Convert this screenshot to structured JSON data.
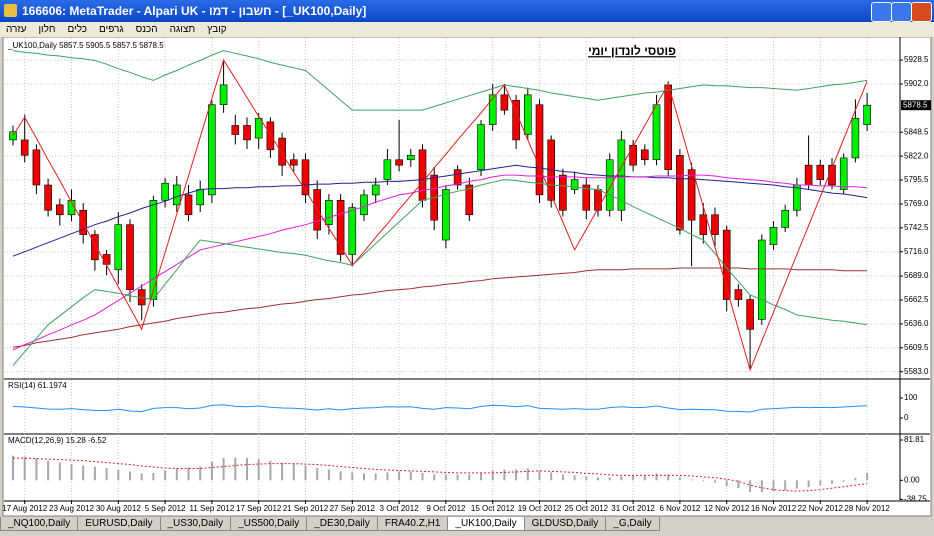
{
  "window": {
    "title": "166606: MetaTrader - Alpari UK - חשבון - דמו - [_UK100,Daily]",
    "menu": [
      "קובץ",
      "תצוגה",
      "הכנס",
      "גרפים",
      "כלים",
      "חלון",
      "עזרה"
    ],
    "tabs": [
      "_NQ100,Daily",
      "EURUSD,Daily",
      "_US30,Daily",
      "_US500,Daily",
      "_DE30,Daily",
      "FRA40.Z,H1",
      "_UK100,Daily",
      "GLDUSD,Daily",
      "_G,Daily"
    ],
    "active_tab": 6
  },
  "chart_data": [
    {
      "type": "candlestick",
      "header": "_UK100,Daily 5857.5 5905.5 5857.5 5878.5",
      "title": "פוטסי לונדון יומי",
      "x": [
        null,
        "17 Aug 2012",
        null,
        null,
        null,
        "23 Aug 2012",
        null,
        null,
        null,
        "30 Aug 2012",
        null,
        null,
        null,
        "5 Sep 2012",
        null,
        null,
        null,
        "11 Sep 2012",
        null,
        null,
        null,
        "17 Sep 2012",
        null,
        null,
        null,
        "21 Sep 2012",
        null,
        null,
        null,
        "27 Sep 2012",
        null,
        null,
        null,
        "3 Oct 2012",
        null,
        null,
        null,
        "9 Oct 2012",
        null,
        null,
        null,
        "15 Oct 2012",
        null,
        null,
        null,
        "19 Oct 2012",
        null,
        null,
        null,
        "25 Oct 2012",
        null,
        null,
        null,
        "31 Oct 2012",
        null,
        null,
        null,
        "6 Nov 2012",
        null,
        null,
        null,
        "12 Nov 2012",
        null,
        null,
        null,
        "16 Nov 2012",
        null,
        null,
        null,
        "22 Nov 2012",
        null,
        null,
        null,
        "28 Nov 2012"
      ],
      "open": [
        5840,
        5840,
        5829,
        5790,
        5768,
        5757,
        5762,
        5735,
        5713,
        5696,
        5746,
        5674,
        5663,
        5773,
        5768,
        5779,
        5768,
        5779,
        5879,
        5856,
        5856,
        5842,
        5860,
        5842,
        5818,
        5818,
        5785,
        5746,
        5773,
        5713,
        5757,
        5779,
        5796,
        5818,
        5818,
        5829,
        5801,
        5729,
        5807,
        5790,
        5807,
        5857,
        5890,
        5884,
        5846,
        5879,
        5840,
        5801,
        5785,
        5790,
        5785,
        5762,
        5762,
        5834,
        5829,
        5818,
        5901,
        5823,
        5807,
        5757,
        5757,
        5740,
        5674,
        5663,
        5641,
        5724,
        5743,
        5762,
        5812,
        5812,
        5812,
        5785,
        5820,
        5857
      ],
      "close": [
        5849,
        5823,
        5790,
        5762,
        5757,
        5773,
        5735,
        5707,
        5702,
        5746,
        5674,
        5657,
        5773,
        5792,
        5790,
        5757,
        5785,
        5879,
        5901,
        5846,
        5840,
        5864,
        5829,
        5812,
        5812,
        5779,
        5740,
        5773,
        5713,
        5765,
        5779,
        5790,
        5818,
        5812,
        5823,
        5773,
        5751,
        5785,
        5790,
        5757,
        5857,
        5890,
        5873,
        5840,
        5890,
        5779,
        5773,
        5762,
        5796,
        5762,
        5762,
        5818,
        5840,
        5812,
        5818,
        5879,
        5807,
        5740,
        5751,
        5735,
        5735,
        5663,
        5663,
        5630,
        5729,
        5743,
        5762,
        5790,
        5790,
        5796,
        5790,
        5820,
        5864,
        5878.5
      ],
      "high": [
        5856,
        5868,
        5835,
        5797,
        5775,
        5785,
        5770,
        5740,
        5718,
        5760,
        5752,
        5680,
        5778,
        5798,
        5800,
        5790,
        5795,
        5884,
        5928,
        5868,
        5865,
        5870,
        5865,
        5848,
        5825,
        5825,
        5795,
        5780,
        5780,
        5770,
        5785,
        5798,
        5830,
        5862,
        5830,
        5835,
        5810,
        5790,
        5812,
        5798,
        5862,
        5902,
        5902,
        5890,
        5898,
        5885,
        5845,
        5808,
        5805,
        5798,
        5790,
        5825,
        5850,
        5840,
        5835,
        5890,
        5905,
        5830,
        5815,
        5770,
        5765,
        5745,
        5680,
        5668,
        5735,
        5750,
        5768,
        5798,
        5845,
        5818,
        5820,
        5825,
        5885,
        5892
      ],
      "low": [
        5834,
        5815,
        5780,
        5755,
        5745,
        5750,
        5725,
        5695,
        5690,
        5680,
        5660,
        5640,
        5655,
        5765,
        5760,
        5750,
        5760,
        5770,
        5870,
        5835,
        5830,
        5830,
        5820,
        5800,
        5805,
        5770,
        5730,
        5735,
        5705,
        5700,
        5750,
        5770,
        5790,
        5805,
        5810,
        5765,
        5740,
        5720,
        5785,
        5750,
        5800,
        5850,
        5868,
        5830,
        5840,
        5770,
        5765,
        5755,
        5780,
        5752,
        5755,
        5755,
        5750,
        5805,
        5812,
        5812,
        5800,
        5735,
        5700,
        5725,
        5720,
        5650,
        5655,
        5585,
        5635,
        5718,
        5738,
        5755,
        5785,
        5790,
        5785,
        5780,
        5815,
        5850
      ],
      "up_color": "#00ee00",
      "down_color": "#ee0000",
      "ylim": [
        5576,
        5953
      ],
      "yticks": [
        5928.5,
        {
          "value": 5902,
          "label": "5902.0"
        },
        5848.5,
        {
          "value": 5822,
          "label": "5822.0"
        },
        5795.5,
        {
          "value": 5769,
          "label": "5769.0"
        },
        5742.5,
        {
          "value": 5716,
          "label": "5716.0"
        },
        {
          "value": 5689,
          "label": "5689.0"
        },
        5662.5,
        {
          "value": 5636,
          "label": "5636.0"
        },
        5609.5,
        {
          "value": 5583,
          "label": "5583.0"
        }
      ],
      "last_price": 5878.5,
      "grid": true,
      "lines": [
        {
          "color": "#a03030",
          "values": [
            5610,
            5612,
            5615,
            5617,
            5619,
            5621,
            5624,
            5626,
            5628,
            5630,
            5633,
            5635,
            5637,
            5639,
            5642,
            5644,
            5646,
            5648,
            5649,
            5651,
            5653,
            5654,
            5656,
            5658,
            5659,
            5661,
            5663,
            5664,
            5666,
            5668,
            5669,
            5671,
            5673,
            5674,
            5675,
            5677,
            5678,
            5680,
            5681,
            5683,
            5684,
            5686,
            5687,
            5688,
            5689,
            5690,
            5691,
            5692,
            5693,
            5695,
            5696,
            5696,
            5696,
            5697,
            5697,
            5697,
            5697,
            5698,
            5698,
            5698,
            5698,
            5698,
            5698,
            5697,
            5697,
            5697,
            5697,
            5696,
            5696,
            5696,
            5696,
            5695,
            5695,
            5695
          ]
        },
        {
          "color": "#202090",
          "values": [
            5711,
            5716,
            5721,
            5726,
            5731,
            5736,
            5741,
            5746,
            5750,
            5755,
            5759,
            5764,
            5768,
            5772,
            5777,
            5781,
            5785,
            5786,
            5786,
            5787,
            5787,
            5788,
            5788,
            5789,
            5789,
            5790,
            5791,
            5791,
            5792,
            5792,
            5793,
            5793,
            5794,
            5794,
            5795,
            5796,
            5798,
            5800,
            5802,
            5804,
            5806,
            5808,
            5810,
            5812,
            5810,
            5809,
            5807,
            5805,
            5804,
            5802,
            5801,
            5800,
            5800,
            5799,
            5799,
            5798,
            5798,
            5797,
            5797,
            5796,
            5795,
            5794,
            5793,
            5792,
            5791,
            5790,
            5788,
            5787,
            5785,
            5783,
            5781,
            5780,
            5778,
            5776
          ]
        },
        {
          "color": "#e020e0",
          "values": [
            5607,
            5613,
            5618,
            5624,
            5629,
            5635,
            5640,
            5646,
            5654,
            5662,
            5670,
            5678,
            5686,
            5694,
            5702,
            5710,
            5718,
            5721,
            5724,
            5727,
            5730,
            5733,
            5736,
            5740,
            5743,
            5746,
            5750,
            5754,
            5758,
            5762,
            5766,
            5771,
            5775,
            5779,
            5781,
            5784,
            5786,
            5789,
            5791,
            5794,
            5796,
            5799,
            5801,
            5801,
            5800,
            5800,
            5799,
            5799,
            5799,
            5798,
            5798,
            5798,
            5799,
            5799,
            5799,
            5800,
            5800,
            5800,
            5801,
            5801,
            5800,
            5798,
            5797,
            5796,
            5795,
            5793,
            5792,
            5790,
            5790,
            5789,
            5789,
            5788,
            5788,
            5787
          ]
        },
        {
          "color": "#40a060",
          "values": [
            5939,
            5937,
            5936,
            5934,
            5933,
            5931,
            5930,
            5928,
            5924,
            5919,
            5915,
            5910,
            5906,
            5912,
            5917,
            5923,
            5928,
            5934,
            5939,
            5936,
            5933,
            5930,
            5926,
            5923,
            5920,
            5917,
            5906,
            5895,
            5884,
            5873,
            5873,
            5873,
            5873,
            5873,
            5873,
            5873,
            5877,
            5881,
            5885,
            5889,
            5893,
            5897,
            5901,
            5899,
            5897,
            5895,
            5892,
            5890,
            5888,
            5886,
            5884,
            5886,
            5888,
            5890,
            5892,
            5893,
            5895,
            5897,
            5899,
            5901,
            5900,
            5900,
            5899,
            5898,
            5898,
            5897,
            5896,
            5895,
            5897,
            5899,
            5901,
            5902,
            5904,
            5906
          ]
        },
        {
          "color": "#40a060",
          "values": [
            5590,
            5605,
            5620,
            5635,
            5645,
            5655,
            5665,
            5674,
            5672,
            5670,
            5667,
            5665,
            5663,
            5680,
            5696,
            5713,
            5729,
            5727,
            5725,
            5723,
            5721,
            5719,
            5717,
            5715,
            5714,
            5712,
            5709,
            5706,
            5704,
            5701,
            5713,
            5725,
            5737,
            5749,
            5761,
            5773,
            5776,
            5780,
            5783,
            5786,
            5790,
            5793,
            5796,
            5795,
            5793,
            5792,
            5790,
            5789,
            5788,
            5786,
            5785,
            5779,
            5773,
            5766,
            5760,
            5754,
            5748,
            5742,
            5735,
            5729,
            5714,
            5698,
            5683,
            5668,
            5663,
            5657,
            5652,
            5646,
            5644,
            5642,
            5640,
            5639,
            5637,
            5635
          ]
        },
        {
          "color": "#e02020",
          "values": [
            5845,
            5865,
            5842,
            5818,
            5795,
            5771,
            5748,
            5724,
            5701,
            5677,
            5654,
            5630,
            5673,
            5715,
            5758,
            5800,
            5843,
            5886,
            5928.5,
            5908,
            5887,
            5866,
            5846,
            5825,
            5804,
            5784,
            5763,
            5742,
            5722,
            5701,
            5716,
            5732,
            5747,
            5763,
            5778,
            5793,
            5809,
            5824,
            5840,
            5855,
            5870,
            5886,
            5901,
            5871,
            5840,
            5810,
            5779,
            5749,
            5718,
            5741,
            5764,
            5787,
            5810,
            5833,
            5856,
            5879,
            5902,
            5857,
            5811,
            5766,
            5721,
            5676,
            5630,
            5585,
            5617,
            5649,
            5681,
            5713,
            5745,
            5777,
            5809,
            5841,
            5873,
            5905
          ]
        }
      ]
    },
    {
      "type": "line",
      "label": "RSI(14) 61.1974",
      "ylim": [
        -75,
        190
      ],
      "yticks": [
        100,
        0
      ],
      "series": [
        {
          "color": "#1e90ff",
          "values": [
            58,
            55,
            50,
            45,
            44,
            47,
            42,
            38,
            37,
            44,
            35,
            32,
            48,
            52,
            52,
            46,
            50,
            63,
            66,
            58,
            56,
            60,
            54,
            50,
            49,
            45,
            40,
            46,
            40,
            47,
            50,
            52,
            56,
            55,
            56,
            48,
            44,
            52,
            50,
            46,
            58,
            64,
            62,
            56,
            62,
            48,
            46,
            44,
            47,
            44,
            44,
            52,
            56,
            52,
            53,
            60,
            50,
            42,
            44,
            42,
            41,
            34,
            33,
            30,
            44,
            47,
            50,
            54,
            52,
            53,
            52,
            55,
            59,
            61.1974
          ]
        }
      ]
    },
    {
      "type": "bar",
      "label": "MACD(12,26,9) 15.28 -6.52",
      "ylim": [
        -40,
        92
      ],
      "yticks": [
        81.81,
        {
          "value": 0,
          "label": "0.00"
        },
        -38.75
      ],
      "color": "#a8a8a8",
      "values": [
        50,
        48,
        45,
        40,
        36,
        33,
        30,
        28,
        25,
        22,
        18,
        14,
        15,
        20,
        24,
        26,
        28,
        38,
        45,
        46,
        45,
        43,
        40,
        36,
        34,
        30,
        25,
        22,
        18,
        16,
        14,
        14,
        16,
        18,
        18,
        15,
        12,
        12,
        12,
        12,
        15,
        20,
        22,
        22,
        24,
        20,
        16,
        12,
        10,
        8,
        6,
        6,
        8,
        10,
        10,
        14,
        12,
        6,
        2,
        -2,
        -5,
        -12,
        -16,
        -24,
        -24,
        -22,
        -20,
        -17,
        -14,
        -10,
        -7,
        -3,
        5,
        15.28
      ],
      "series": [
        {
          "color": "#e02020",
          "dash": true,
          "values": [
            45,
            45,
            44,
            43,
            42,
            41,
            40,
            38,
            36,
            34,
            32,
            29,
            27,
            25,
            24,
            24,
            24,
            26,
            28,
            30,
            32,
            33,
            34,
            34,
            34,
            33,
            32,
            30,
            28,
            26,
            24,
            22,
            21,
            20,
            19,
            18,
            17,
            16,
            15,
            15,
            15,
            15,
            16,
            17,
            18,
            19,
            18,
            17,
            16,
            14,
            13,
            11,
            10,
            10,
            10,
            10,
            10,
            10,
            9,
            7,
            5,
            2,
            -2,
            -10,
            -15,
            -19,
            -21,
            -22,
            -21,
            -19,
            -16,
            -13,
            -10,
            -6.52
          ]
        }
      ]
    }
  ]
}
